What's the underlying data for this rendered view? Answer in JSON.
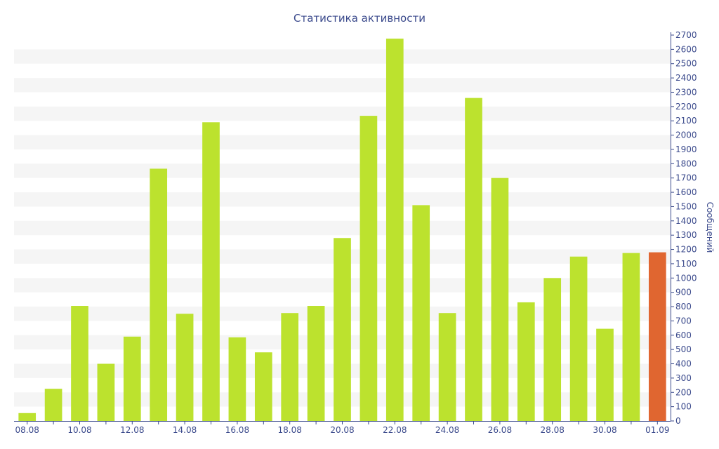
{
  "chart_data": {
    "type": "bar",
    "title": "Статистика активности",
    "xlabel": "",
    "ylabel": "Сообщений",
    "ylim": [
      0,
      2700
    ],
    "yticks": [
      0,
      100,
      200,
      300,
      400,
      500,
      600,
      700,
      800,
      900,
      1000,
      1100,
      1200,
      1300,
      1400,
      1500,
      1600,
      1700,
      1800,
      1900,
      2000,
      2100,
      2200,
      2300,
      2400,
      2500,
      2600,
      2700
    ],
    "categories": [
      "08.08",
      "09.08",
      "10.08",
      "11.08",
      "12.08",
      "13.08",
      "14.08",
      "15.08",
      "16.08",
      "17.08",
      "18.08",
      "19.08",
      "20.08",
      "21.08",
      "22.08",
      "23.08",
      "24.08",
      "25.08",
      "26.08",
      "27.08",
      "28.08",
      "29.08",
      "30.08",
      "31.08",
      "01.09"
    ],
    "x_tick_labels": [
      "08.08",
      "10.08",
      "12.08",
      "14.08",
      "16.08",
      "18.08",
      "20.08",
      "22.08",
      "24.08",
      "26.08",
      "28.08",
      "30.08",
      "01.09"
    ],
    "series": [
      {
        "values": [
          55,
          225,
          805,
          400,
          590,
          1765,
          750,
          2090,
          585,
          480,
          755,
          805,
          1280,
          2135,
          2675,
          1510,
          755,
          2260,
          1700,
          830,
          1000,
          1150,
          645,
          1175,
          1180
        ],
        "color": "#bce22e",
        "highlight_color": "#e06630",
        "highlight_category": "01.09"
      }
    ],
    "grid": true,
    "axis_side": "right",
    "band_colors": [
      "#f5f5f5",
      "#ffffff"
    ]
  }
}
